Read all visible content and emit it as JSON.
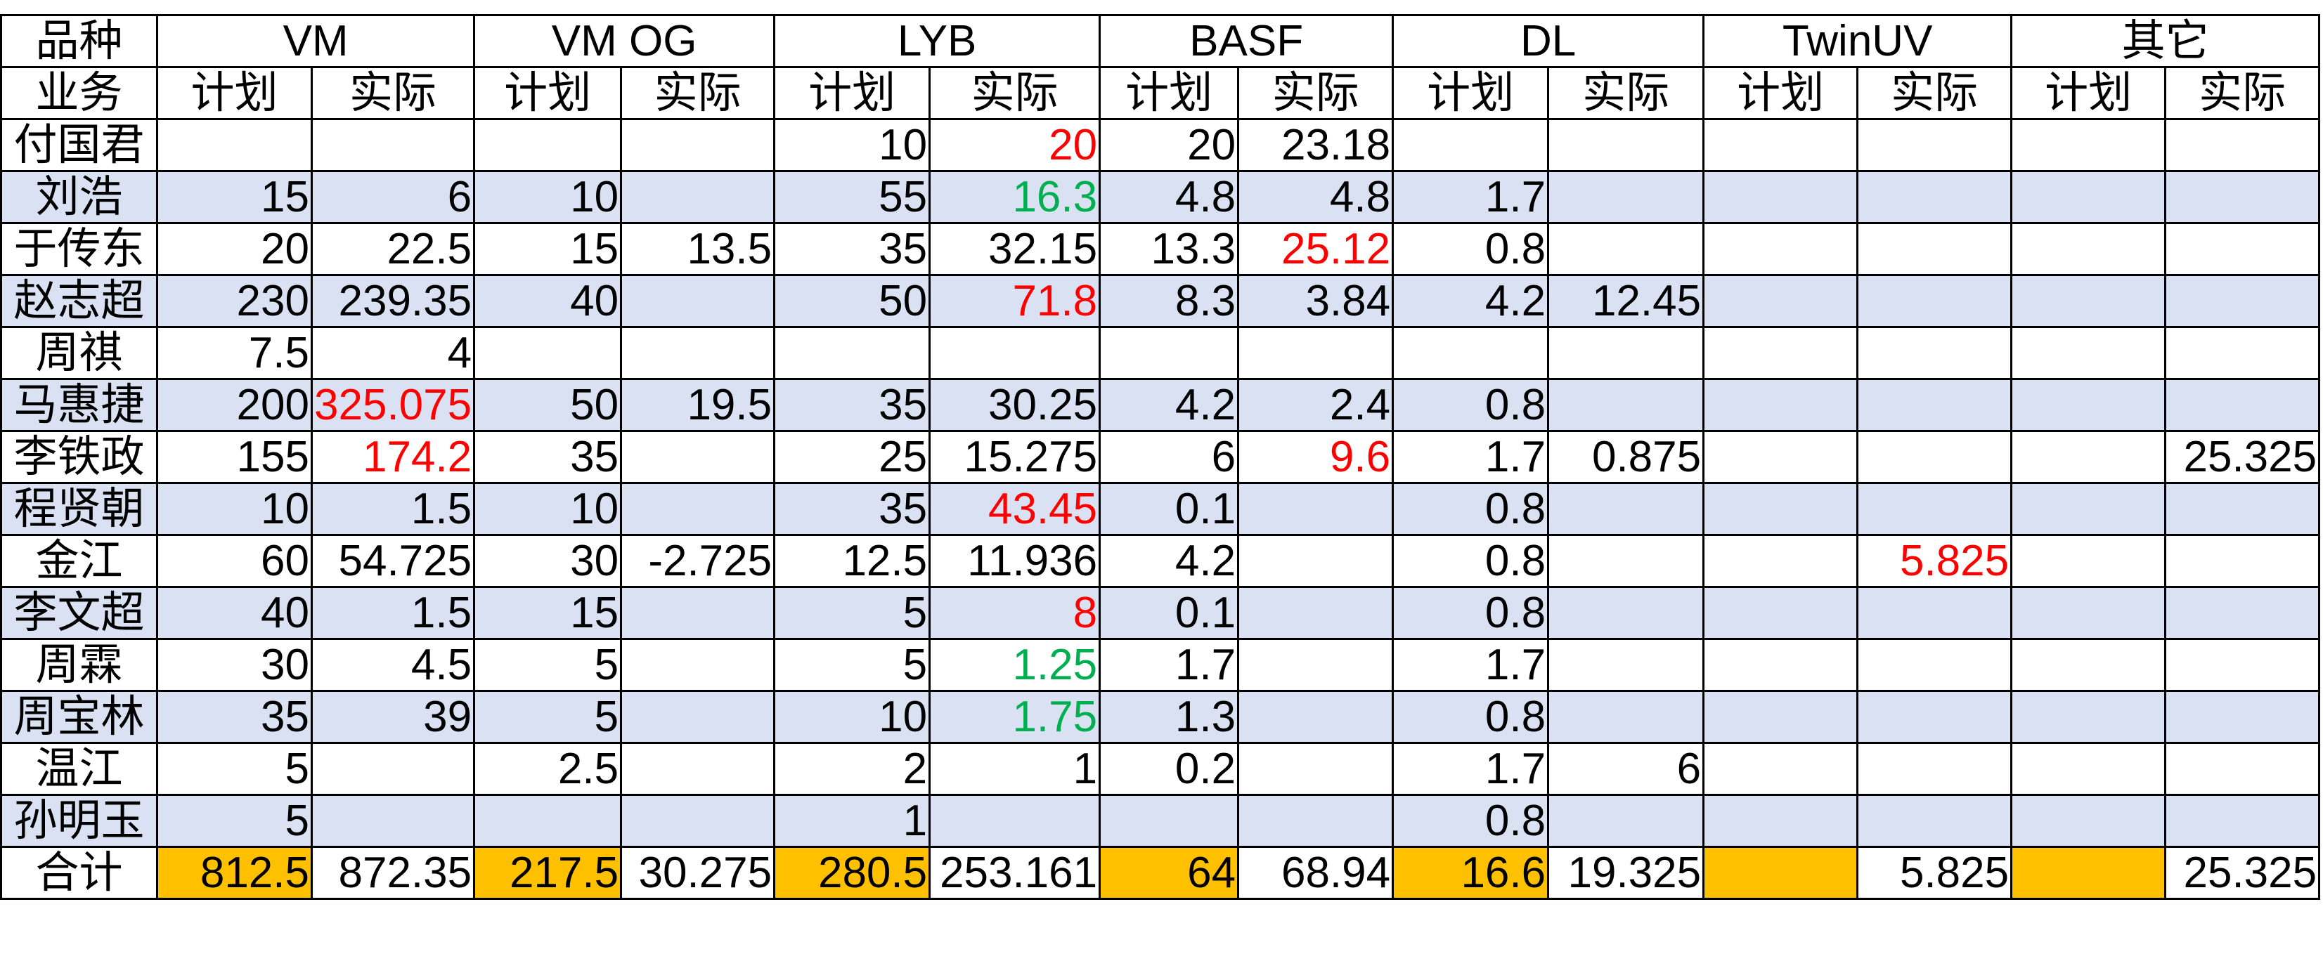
{
  "colors": {
    "shaded_row": "#d9e1f2",
    "total_plan_fill": "#ffc000",
    "red": "#ff0000",
    "green": "#00b050"
  },
  "header": {
    "corner_top": "品种",
    "corner_bottom": "业务",
    "groups": [
      "VM",
      "VM OG",
      "LYB",
      "BASF",
      "DL",
      "TwinUV",
      "其它"
    ],
    "plan_label": "计划",
    "actual_label": "实际"
  },
  "rows": [
    {
      "name": "付国君",
      "shaded": false,
      "cells": [
        {
          "v": ""
        },
        {
          "v": ""
        },
        {
          "v": ""
        },
        {
          "v": ""
        },
        {
          "v": "10"
        },
        {
          "v": "20",
          "c": "red"
        },
        {
          "v": "20"
        },
        {
          "v": "23.18"
        },
        {
          "v": ""
        },
        {
          "v": ""
        },
        {
          "v": ""
        },
        {
          "v": ""
        },
        {
          "v": ""
        },
        {
          "v": ""
        }
      ]
    },
    {
      "name": "刘浩",
      "shaded": true,
      "cells": [
        {
          "v": "15"
        },
        {
          "v": "6"
        },
        {
          "v": "10"
        },
        {
          "v": ""
        },
        {
          "v": "55"
        },
        {
          "v": "16.3",
          "c": "green"
        },
        {
          "v": "4.8"
        },
        {
          "v": "4.8"
        },
        {
          "v": "1.7"
        },
        {
          "v": ""
        },
        {
          "v": ""
        },
        {
          "v": ""
        },
        {
          "v": ""
        },
        {
          "v": ""
        }
      ]
    },
    {
      "name": "于传东",
      "shaded": false,
      "cells": [
        {
          "v": "20"
        },
        {
          "v": "22.5"
        },
        {
          "v": "15"
        },
        {
          "v": "13.5"
        },
        {
          "v": "35"
        },
        {
          "v": "32.15"
        },
        {
          "v": "13.3"
        },
        {
          "v": "25.12",
          "c": "red"
        },
        {
          "v": "0.8"
        },
        {
          "v": ""
        },
        {
          "v": ""
        },
        {
          "v": ""
        },
        {
          "v": ""
        },
        {
          "v": ""
        }
      ]
    },
    {
      "name": "赵志超",
      "shaded": true,
      "cells": [
        {
          "v": "230"
        },
        {
          "v": "239.35"
        },
        {
          "v": "40"
        },
        {
          "v": ""
        },
        {
          "v": "50"
        },
        {
          "v": "71.8",
          "c": "red"
        },
        {
          "v": "8.3"
        },
        {
          "v": "3.84"
        },
        {
          "v": "4.2"
        },
        {
          "v": "12.45"
        },
        {
          "v": ""
        },
        {
          "v": ""
        },
        {
          "v": ""
        },
        {
          "v": ""
        }
      ]
    },
    {
      "name": "周祺",
      "shaded": false,
      "cells": [
        {
          "v": "7.5"
        },
        {
          "v": "4"
        },
        {
          "v": ""
        },
        {
          "v": ""
        },
        {
          "v": ""
        },
        {
          "v": ""
        },
        {
          "v": ""
        },
        {
          "v": ""
        },
        {
          "v": ""
        },
        {
          "v": ""
        },
        {
          "v": ""
        },
        {
          "v": ""
        },
        {
          "v": ""
        },
        {
          "v": ""
        }
      ]
    },
    {
      "name": "马惠捷",
      "shaded": true,
      "cells": [
        {
          "v": "200"
        },
        {
          "v": "325.075",
          "c": "red"
        },
        {
          "v": "50"
        },
        {
          "v": "19.5"
        },
        {
          "v": "35"
        },
        {
          "v": "30.25"
        },
        {
          "v": "4.2"
        },
        {
          "v": "2.4"
        },
        {
          "v": "0.8"
        },
        {
          "v": ""
        },
        {
          "v": ""
        },
        {
          "v": ""
        },
        {
          "v": ""
        },
        {
          "v": ""
        }
      ]
    },
    {
      "name": "李铁政",
      "shaded": false,
      "cells": [
        {
          "v": "155"
        },
        {
          "v": "174.2",
          "c": "red"
        },
        {
          "v": "35"
        },
        {
          "v": ""
        },
        {
          "v": "25"
        },
        {
          "v": "15.275"
        },
        {
          "v": "6"
        },
        {
          "v": "9.6",
          "c": "red"
        },
        {
          "v": "1.7"
        },
        {
          "v": "0.875"
        },
        {
          "v": ""
        },
        {
          "v": ""
        },
        {
          "v": ""
        },
        {
          "v": "25.325"
        }
      ]
    },
    {
      "name": "程贤朝",
      "shaded": true,
      "cells": [
        {
          "v": "10"
        },
        {
          "v": "1.5"
        },
        {
          "v": "10"
        },
        {
          "v": ""
        },
        {
          "v": "35"
        },
        {
          "v": "43.45",
          "c": "red"
        },
        {
          "v": "0.1"
        },
        {
          "v": ""
        },
        {
          "v": "0.8"
        },
        {
          "v": ""
        },
        {
          "v": ""
        },
        {
          "v": ""
        },
        {
          "v": ""
        },
        {
          "v": ""
        }
      ]
    },
    {
      "name": "金江",
      "shaded": false,
      "cells": [
        {
          "v": "60"
        },
        {
          "v": "54.725"
        },
        {
          "v": "30"
        },
        {
          "v": "-2.725"
        },
        {
          "v": "12.5"
        },
        {
          "v": "11.936"
        },
        {
          "v": "4.2"
        },
        {
          "v": ""
        },
        {
          "v": "0.8"
        },
        {
          "v": ""
        },
        {
          "v": ""
        },
        {
          "v": "5.825",
          "c": "red"
        },
        {
          "v": ""
        },
        {
          "v": ""
        }
      ]
    },
    {
      "name": "李文超",
      "shaded": true,
      "cells": [
        {
          "v": "40"
        },
        {
          "v": "1.5"
        },
        {
          "v": "15"
        },
        {
          "v": ""
        },
        {
          "v": "5"
        },
        {
          "v": "8",
          "c": "red"
        },
        {
          "v": "0.1"
        },
        {
          "v": ""
        },
        {
          "v": "0.8"
        },
        {
          "v": ""
        },
        {
          "v": ""
        },
        {
          "v": ""
        },
        {
          "v": ""
        },
        {
          "v": ""
        }
      ]
    },
    {
      "name": "周霖",
      "shaded": false,
      "cells": [
        {
          "v": "30"
        },
        {
          "v": "4.5"
        },
        {
          "v": "5"
        },
        {
          "v": ""
        },
        {
          "v": "5"
        },
        {
          "v": "1.25",
          "c": "green"
        },
        {
          "v": "1.7"
        },
        {
          "v": ""
        },
        {
          "v": "1.7"
        },
        {
          "v": ""
        },
        {
          "v": ""
        },
        {
          "v": ""
        },
        {
          "v": ""
        },
        {
          "v": ""
        }
      ]
    },
    {
      "name": "周宝林",
      "shaded": true,
      "cells": [
        {
          "v": "35"
        },
        {
          "v": "39"
        },
        {
          "v": "5"
        },
        {
          "v": ""
        },
        {
          "v": "10"
        },
        {
          "v": "1.75",
          "c": "green"
        },
        {
          "v": "1.3"
        },
        {
          "v": ""
        },
        {
          "v": "0.8"
        },
        {
          "v": ""
        },
        {
          "v": ""
        },
        {
          "v": ""
        },
        {
          "v": ""
        },
        {
          "v": ""
        }
      ]
    },
    {
      "name": "温江",
      "shaded": false,
      "cells": [
        {
          "v": "5"
        },
        {
          "v": ""
        },
        {
          "v": "2.5"
        },
        {
          "v": ""
        },
        {
          "v": "2"
        },
        {
          "v": "1"
        },
        {
          "v": "0.2"
        },
        {
          "v": ""
        },
        {
          "v": "1.7"
        },
        {
          "v": "6"
        },
        {
          "v": ""
        },
        {
          "v": ""
        },
        {
          "v": ""
        },
        {
          "v": ""
        }
      ]
    },
    {
      "name": "孙明玉",
      "shaded": true,
      "cells": [
        {
          "v": "5"
        },
        {
          "v": ""
        },
        {
          "v": ""
        },
        {
          "v": ""
        },
        {
          "v": "1"
        },
        {
          "v": ""
        },
        {
          "v": ""
        },
        {
          "v": ""
        },
        {
          "v": "0.8"
        },
        {
          "v": ""
        },
        {
          "v": ""
        },
        {
          "v": ""
        },
        {
          "v": ""
        },
        {
          "v": ""
        }
      ]
    }
  ],
  "total": {
    "label": "合计",
    "cells": [
      "812.5",
      "872.35",
      "217.5",
      "30.275",
      "280.5",
      "253.161",
      "64",
      "68.94",
      "16.6",
      "19.325",
      "",
      "5.825",
      "",
      "25.325"
    ]
  }
}
